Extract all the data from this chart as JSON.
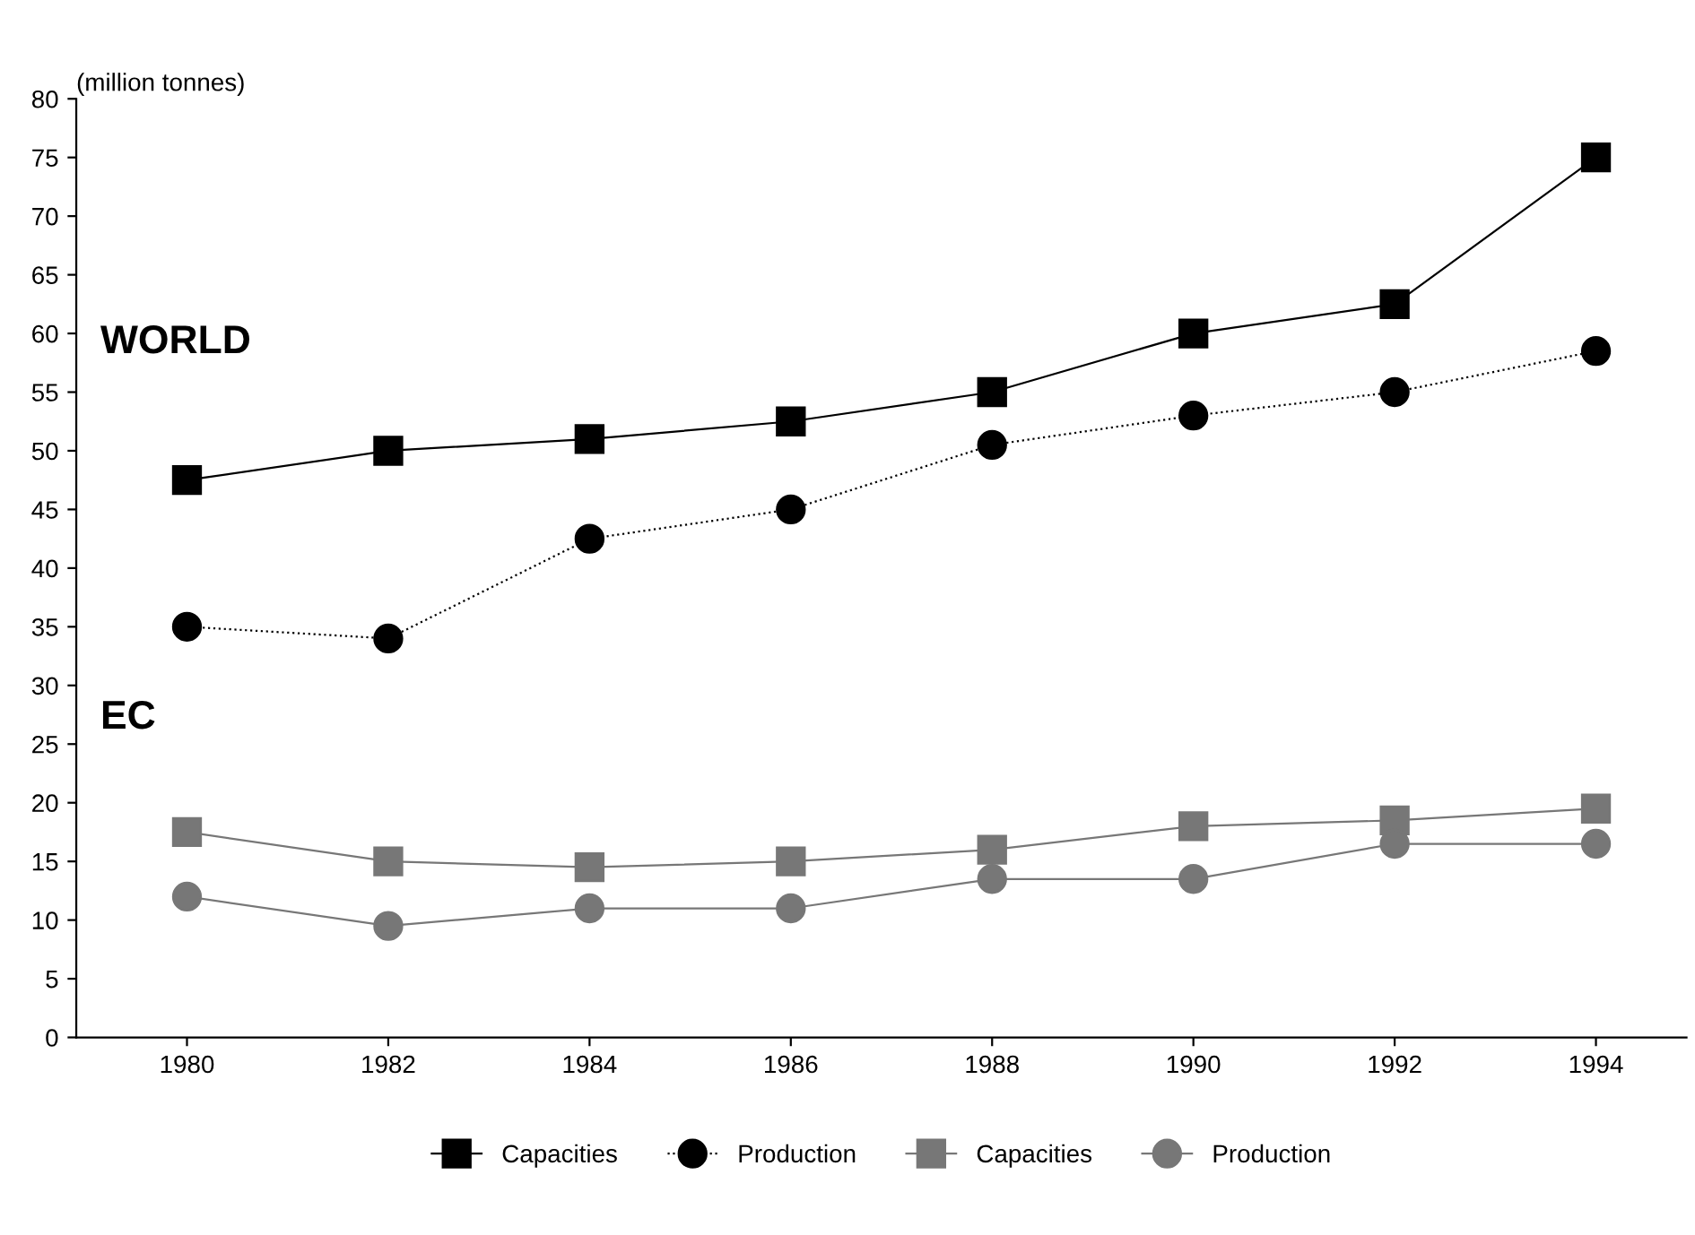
{
  "chart_data": {
    "type": "line",
    "ylabel": "(million tonnes)",
    "categories": [
      "1980",
      "1982",
      "1984",
      "1986",
      "1988",
      "1990",
      "1992",
      "1994"
    ],
    "series": [
      {
        "name": "Capacities",
        "color": "#000000",
        "marker": "square",
        "line_style": "solid",
        "values": [
          47.5,
          50,
          51,
          52.5,
          55,
          60,
          62.5,
          75
        ]
      },
      {
        "name": "Production",
        "color": "#000000",
        "marker": "circle",
        "line_style": "dotted",
        "values": [
          35,
          34,
          42.5,
          45,
          50.5,
          53,
          55,
          58.5
        ]
      },
      {
        "name": "Capacities",
        "color": "#777777",
        "marker": "square",
        "line_style": "solid",
        "values": [
          17.5,
          15,
          14.5,
          15,
          16,
          18,
          18.5,
          19.5
        ]
      },
      {
        "name": "Production",
        "color": "#777777",
        "marker": "circle",
        "line_style": "solid",
        "values": [
          12,
          9.5,
          11,
          11,
          13.5,
          13.5,
          16.5,
          16.5
        ]
      }
    ],
    "ylim": [
      0,
      80
    ],
    "yticks": [
      0,
      5,
      10,
      15,
      20,
      25,
      30,
      35,
      40,
      45,
      50,
      55,
      60,
      65,
      70,
      75,
      80
    ],
    "annotations": [
      "WORLD",
      "EC"
    ],
    "legend": "bottom",
    "grid": false
  }
}
